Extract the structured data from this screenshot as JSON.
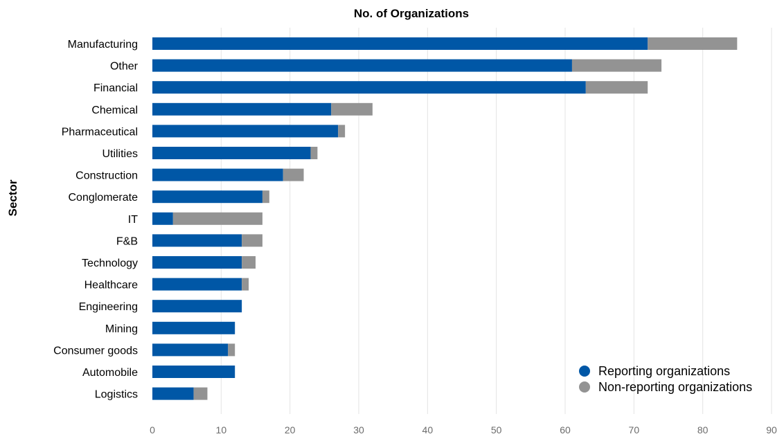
{
  "chart_data": {
    "type": "bar",
    "orientation": "horizontal",
    "stacked": true,
    "title": "No. of Organizations",
    "xlabel": "",
    "ylabel": "Sector",
    "xlim": [
      0,
      90
    ],
    "x_ticks": [
      0,
      10,
      20,
      30,
      40,
      50,
      60,
      70,
      80,
      90
    ],
    "grid": "vertical",
    "legend_position": "bottom-right",
    "categories": [
      "Manufacturing",
      "Other",
      "Financial",
      "Chemical",
      "Pharmaceutical",
      "Utilities",
      "Construction",
      "Conglomerate",
      "IT",
      "F&B",
      "Technology",
      "Healthcare",
      "Engineering",
      "Mining",
      "Consumer goods",
      "Automobile",
      "Logistics"
    ],
    "series": [
      {
        "name": "Reporting organizations",
        "color": "#0057a6",
        "values": [
          72,
          61,
          63,
          26,
          27,
          23,
          19,
          16,
          3,
          13,
          13,
          13,
          13,
          12,
          11,
          12,
          6
        ]
      },
      {
        "name": "Non-reporting organizations",
        "color": "#939393",
        "values": [
          13,
          13,
          9,
          6,
          1,
          1,
          3,
          1,
          13,
          3,
          2,
          1,
          0,
          0,
          1,
          0,
          2
        ]
      }
    ]
  }
}
